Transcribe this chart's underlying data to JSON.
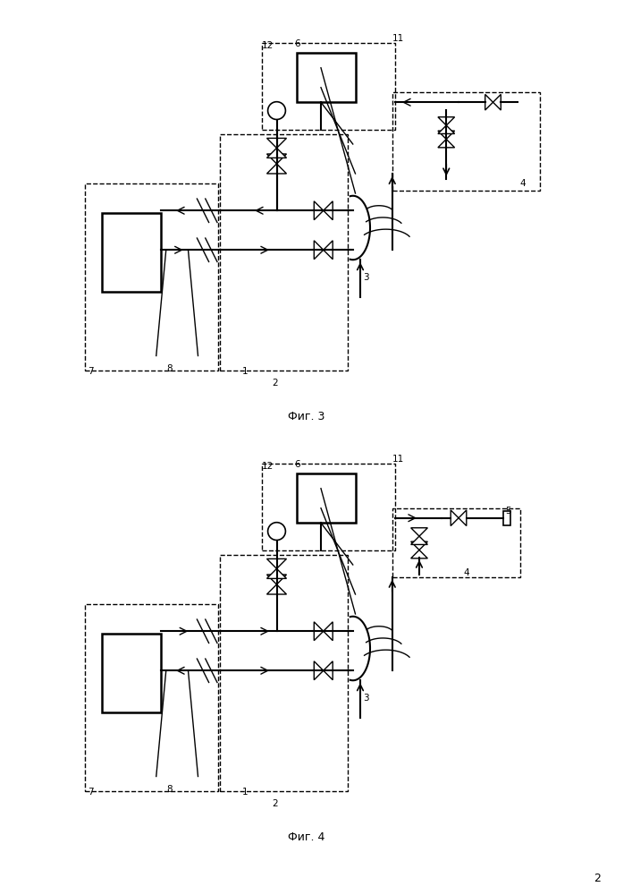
{
  "fig3_caption": "Фиг. 3",
  "fig4_caption": "Фиг. 4",
  "page_number": "2"
}
